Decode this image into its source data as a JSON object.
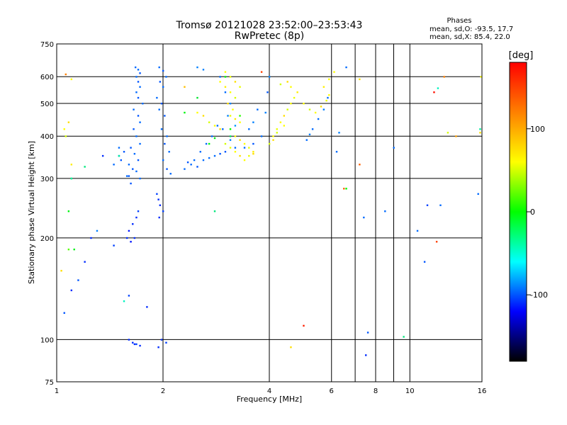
{
  "chart_data": {
    "type": "scatter",
    "title": "Tromsø 20121028 23:52:00–23:53:43",
    "subtitle": "RwPretec (8p)",
    "stats": {
      "heading": "Phases",
      "line1": "mean, sd,O: -93.5, 17.7",
      "line2": "mean, sd,X:  85.4, 22.0"
    },
    "xlabel": "Frequency [MHz]",
    "ylabel": "Stationary phase Virtual Height [km]",
    "x_scale": "log",
    "y_scale": "log",
    "xlim": [
      1,
      16
    ],
    "ylim": [
      75,
      750
    ],
    "x_ticks": [
      1,
      2,
      4,
      6,
      8,
      10,
      16
    ],
    "x_minor_ticks": [
      7,
      9
    ],
    "y_ticks": [
      75,
      100,
      200,
      300,
      400,
      500,
      600,
      750
    ],
    "grid": true,
    "colorbar": {
      "label": "[deg]",
      "range": [
        -180,
        180
      ],
      "ticks": [
        100,
        0,
        -100
      ],
      "colors": [
        "#ff0000",
        "#ff8000",
        "#ffff00",
        "#00ff00",
        "#00ffff",
        "#0000ff",
        "#000000"
      ]
    },
    "series": [
      {
        "points": [
          [
            1.67,
            640,
            -95
          ],
          [
            1.7,
            630,
            -95
          ],
          [
            1.72,
            615,
            -100
          ],
          [
            1.68,
            600,
            -95
          ],
          [
            1.7,
            580,
            -100
          ],
          [
            1.72,
            560,
            -95
          ],
          [
            1.68,
            540,
            -95
          ],
          [
            1.7,
            520,
            -100
          ],
          [
            1.75,
            500,
            -95
          ],
          [
            1.65,
            480,
            -95
          ],
          [
            1.7,
            460,
            -100
          ],
          [
            1.72,
            440,
            -95
          ],
          [
            1.65,
            420,
            -100
          ],
          [
            1.68,
            400,
            -95
          ],
          [
            1.72,
            380,
            -95
          ],
          [
            1.62,
            370,
            -100
          ],
          [
            1.66,
            355,
            -95
          ],
          [
            1.7,
            340,
            -100
          ],
          [
            1.6,
            330,
            -95
          ],
          [
            1.64,
            320,
            -100
          ],
          [
            1.68,
            315,
            -95
          ],
          [
            1.6,
            305,
            -100
          ],
          [
            1.72,
            300,
            -95
          ],
          [
            1.58,
            305,
            -95
          ],
          [
            1.62,
            290,
            -100
          ],
          [
            1.95,
            640,
            -95
          ],
          [
            2.0,
            625,
            -100
          ],
          [
            2.04,
            600,
            -95
          ],
          [
            1.96,
            580,
            -100
          ],
          [
            2.0,
            560,
            -95
          ],
          [
            1.92,
            520,
            -95
          ],
          [
            1.98,
            500,
            -100
          ],
          [
            1.95,
            480,
            -95
          ],
          [
            2.02,
            460,
            -100
          ],
          [
            1.98,
            420,
            -95
          ],
          [
            2.05,
            400,
            -95
          ],
          [
            2.02,
            380,
            -100
          ],
          [
            2.08,
            360,
            -95
          ],
          [
            2.0,
            340,
            -95
          ],
          [
            2.05,
            320,
            -100
          ],
          [
            2.1,
            310,
            -95
          ],
          [
            1.94,
            260,
            -110
          ],
          [
            1.96,
            250,
            -110
          ],
          [
            2.0,
            240,
            -105
          ],
          [
            1.92,
            270,
            -105
          ],
          [
            1.95,
            230,
            -110
          ],
          [
            1.6,
            210,
            -115
          ],
          [
            1.64,
            220,
            -110
          ],
          [
            1.68,
            230,
            -110
          ],
          [
            1.58,
            200,
            -110
          ],
          [
            1.62,
            195,
            -115
          ],
          [
            1.7,
            240,
            -105
          ],
          [
            1.66,
            200,
            -110
          ],
          [
            1.6,
            100,
            -110
          ],
          [
            1.64,
            98,
            -110
          ],
          [
            1.68,
            97,
            -105
          ],
          [
            1.72,
            96,
            -110
          ],
          [
            1.66,
            97,
            -110
          ],
          [
            1.98,
            100,
            -110
          ],
          [
            2.04,
            98,
            -105
          ],
          [
            1.94,
            95,
            -110
          ],
          [
            2.4,
            330,
            -95
          ],
          [
            2.6,
            340,
            -95
          ],
          [
            2.8,
            350,
            -95
          ],
          [
            3.0,
            360,
            -100
          ],
          [
            3.2,
            370,
            -95
          ],
          [
            2.5,
            325,
            -100
          ],
          [
            2.7,
            345,
            -95
          ],
          [
            2.9,
            355,
            -100
          ],
          [
            2.3,
            320,
            -95
          ],
          [
            2.45,
            340,
            -95
          ],
          [
            2.55,
            360,
            -95
          ],
          [
            2.65,
            380,
            -95
          ],
          [
            2.75,
            400,
            -95
          ],
          [
            2.85,
            430,
            -95
          ],
          [
            2.35,
            335,
            -100
          ],
          [
            2.6,
            630,
            -90
          ],
          [
            2.5,
            640,
            -90
          ],
          [
            2.9,
            600,
            -95
          ],
          [
            3.0,
            540,
            -95
          ],
          [
            3.1,
            500,
            -90
          ],
          [
            3.05,
            460,
            -90
          ],
          [
            3.2,
            430,
            -85
          ],
          [
            2.95,
            420,
            -95
          ],
          [
            3.1,
            390,
            -90
          ],
          [
            3.4,
            370,
            -95
          ],
          [
            3.6,
            380,
            -100
          ],
          [
            3.8,
            400,
            -95
          ],
          [
            3.6,
            440,
            -90
          ],
          [
            3.7,
            480,
            -95
          ],
          [
            3.5,
            420,
            -95
          ],
          [
            3.9,
            470,
            -90
          ],
          [
            3.95,
            540,
            -100
          ],
          [
            4.0,
            600,
            -90
          ],
          [
            1.05,
            120,
            -100
          ],
          [
            1.1,
            140,
            -110
          ],
          [
            1.15,
            150,
            -100
          ],
          [
            1.25,
            200,
            -110
          ],
          [
            1.3,
            210,
            -90
          ],
          [
            1.2,
            170,
            -110
          ],
          [
            1.35,
            350,
            -110
          ],
          [
            1.45,
            190,
            -105
          ],
          [
            1.5,
            370,
            -95
          ],
          [
            1.55,
            360,
            -100
          ],
          [
            1.5,
            350,
            -95
          ],
          [
            1.45,
            330,
            -95
          ],
          [
            1.52,
            340,
            -100
          ],
          [
            5.1,
            390,
            -95
          ],
          [
            5.2,
            405,
            -90
          ],
          [
            5.3,
            420,
            -95
          ],
          [
            5.5,
            450,
            -95
          ],
          [
            5.7,
            480,
            -90
          ],
          [
            5.85,
            520,
            -95
          ],
          [
            6.3,
            410,
            -90
          ],
          [
            6.6,
            640,
            -95
          ],
          [
            6.2,
            360,
            -95
          ],
          [
            7.4,
            230,
            -95
          ],
          [
            8.5,
            240,
            -95
          ],
          [
            9.0,
            370,
            -95
          ],
          [
            7.6,
            105,
            -100
          ],
          [
            7.5,
            90,
            -110
          ],
          [
            10.5,
            210,
            -95
          ],
          [
            11.0,
            170,
            -100
          ],
          [
            11.2,
            250,
            -105
          ],
          [
            12.2,
            250,
            -95
          ],
          [
            15.6,
            270,
            -95
          ],
          [
            1.8,
            125,
            -110
          ],
          [
            1.6,
            135,
            -105
          ]
        ]
      },
      {
        "points": [
          [
            2.5,
            470,
            100
          ],
          [
            2.6,
            460,
            110
          ],
          [
            2.7,
            440,
            90
          ],
          [
            2.8,
            430,
            100
          ],
          [
            2.9,
            420,
            110
          ],
          [
            3.0,
            380,
            90
          ],
          [
            3.1,
            370,
            95
          ],
          [
            3.2,
            360,
            100
          ],
          [
            3.3,
            350,
            110
          ],
          [
            3.4,
            340,
            100
          ],
          [
            3.5,
            350,
            95
          ],
          [
            3.6,
            355,
            110
          ],
          [
            3.0,
            620,
            100
          ],
          [
            3.1,
            600,
            95
          ],
          [
            3.2,
            580,
            110
          ],
          [
            3.0,
            560,
            105
          ],
          [
            3.1,
            540,
            100
          ],
          [
            3.2,
            520,
            90
          ],
          [
            3.05,
            500,
            110
          ],
          [
            3.15,
            480,
            100
          ],
          [
            3.1,
            460,
            95
          ],
          [
            3.2,
            450,
            105
          ],
          [
            3.3,
            440,
            100
          ],
          [
            3.2,
            400,
            100
          ],
          [
            3.3,
            390,
            110
          ],
          [
            3.4,
            380,
            100
          ],
          [
            3.5,
            370,
            95
          ],
          [
            3.6,
            360,
            105
          ],
          [
            4.0,
            380,
            90
          ],
          [
            4.1,
            400,
            100
          ],
          [
            4.2,
            420,
            95
          ],
          [
            4.3,
            440,
            100
          ],
          [
            4.4,
            460,
            110
          ],
          [
            4.5,
            480,
            90
          ],
          [
            4.6,
            500,
            100
          ],
          [
            4.7,
            520,
            95
          ],
          [
            4.8,
            540,
            105
          ],
          [
            4.6,
            560,
            100
          ],
          [
            4.5,
            580,
            110
          ],
          [
            4.3,
            570,
            90
          ],
          [
            5.0,
            500,
            100
          ],
          [
            5.2,
            480,
            90
          ],
          [
            5.4,
            470,
            100
          ],
          [
            5.6,
            490,
            110
          ],
          [
            5.8,
            510,
            95
          ],
          [
            5.9,
            530,
            100
          ],
          [
            5.7,
            560,
            105
          ],
          [
            5.9,
            590,
            100
          ],
          [
            4.1,
            390,
            110
          ],
          [
            4.2,
            410,
            90
          ],
          [
            4.4,
            430,
            100
          ],
          [
            2.3,
            560,
            120
          ],
          [
            2.9,
            580,
            100
          ],
          [
            3.3,
            560,
            95
          ],
          [
            6.1,
            620,
            100
          ],
          [
            7.2,
            590,
            110
          ],
          [
            12.8,
            410,
            90
          ],
          [
            15.9,
            600,
            100
          ],
          [
            15.8,
            410,
            110
          ],
          [
            4.6,
            95,
            110
          ],
          [
            1.05,
            420,
            100
          ],
          [
            1.08,
            440,
            110
          ],
          [
            1.06,
            400,
            90
          ],
          [
            1.1,
            590,
            100
          ],
          [
            1.03,
            160,
            110
          ],
          [
            1.1,
            330,
            105
          ]
        ]
      },
      {
        "points": [
          [
            2.7,
            380,
            30
          ],
          [
            2.8,
            395,
            20
          ],
          [
            3.1,
            420,
            40
          ],
          [
            3.0,
            600,
            30
          ],
          [
            2.5,
            520,
            10
          ],
          [
            3.3,
            460,
            50
          ],
          [
            6.6,
            280,
            40
          ],
          [
            1.08,
            240,
            30
          ],
          [
            1.08,
            185,
            60
          ],
          [
            1.1,
            300,
            20
          ],
          [
            1.12,
            185,
            25
          ],
          [
            2.3,
            470,
            30
          ]
        ]
      },
      {
        "points": [
          [
            1.1,
            300,
            -30
          ],
          [
            1.2,
            325,
            -20
          ],
          [
            1.55,
            130,
            -40
          ],
          [
            2.8,
            240,
            -20
          ],
          [
            9.6,
            102,
            -20
          ],
          [
            12.0,
            555,
            -40
          ],
          [
            15.8,
            420,
            -30
          ],
          [
            1.5,
            350,
            -30
          ],
          [
            3.1,
            400,
            -10
          ]
        ]
      },
      {
        "points": [
          [
            5.0,
            110,
            170
          ],
          [
            11.7,
            540,
            175
          ],
          [
            11.9,
            195,
            160
          ],
          [
            6.5,
            280,
            150
          ],
          [
            7.2,
            330,
            150
          ],
          [
            12.5,
            600,
            140
          ],
          [
            13.5,
            400,
            130
          ],
          [
            1.06,
            610,
            140
          ],
          [
            3.8,
            620,
            160
          ]
        ]
      }
    ]
  }
}
